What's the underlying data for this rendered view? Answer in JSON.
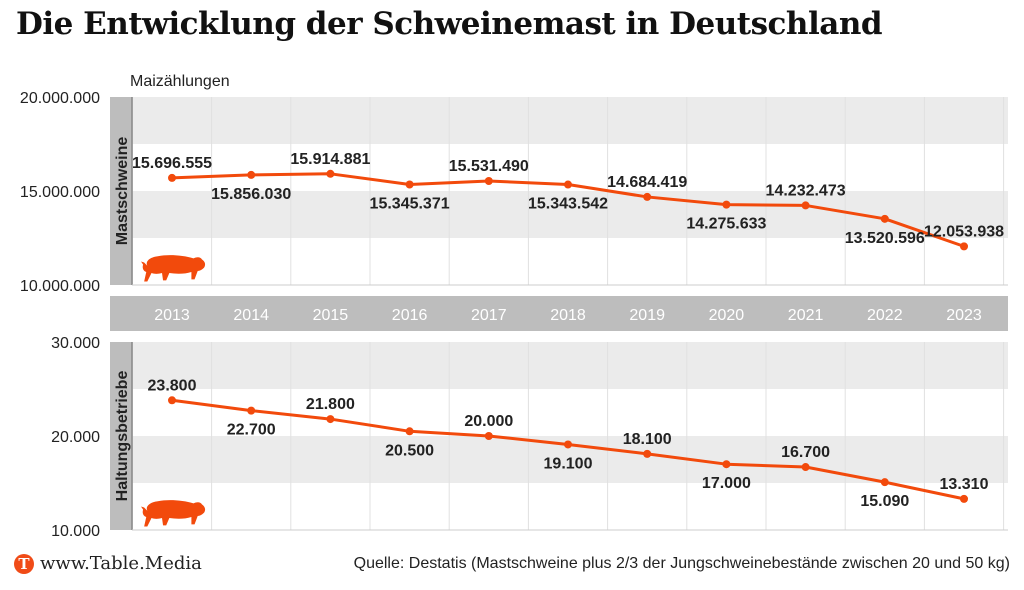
{
  "title": "Die Entwicklung der Schweinemast in Deutschland",
  "unit_label": "Maizählungen",
  "footer": {
    "logo_letter": "T",
    "site": "www.Table.Media",
    "source": "Quelle: Destatis (Mastschweine plus 2/3 der Jungschweinebestände zwischen 20 und 50 kg)"
  },
  "colors": {
    "line": "#f24a0c",
    "band": "#ebebeb",
    "axis_strip": "#bdbdbd",
    "year_text": "#ffffff"
  },
  "chart_data": [
    {
      "type": "line",
      "panel_label": "Mastschweine",
      "icon": "pig-icon",
      "x": [
        "2013",
        "2014",
        "2015",
        "2016",
        "2017",
        "2018",
        "2019",
        "2020",
        "2021",
        "2022",
        "2023"
      ],
      "values": [
        15696555,
        15856030,
        15914881,
        15345371,
        15531490,
        15343542,
        14684419,
        14275633,
        14232473,
        13520596,
        12053938
      ],
      "labels": [
        "15.696.555",
        "15.856.030",
        "15.914.881",
        "15.345.371",
        "15.531.490",
        "15.343.542",
        "14.684.419",
        "14.275.633",
        "14.232.473",
        "13.520.596",
        "12.053.938"
      ],
      "label_pos": [
        "above",
        "below",
        "above",
        "below",
        "above",
        "below",
        "above",
        "below",
        "above",
        "below",
        "above"
      ],
      "ylim": [
        10000000,
        20000000
      ],
      "yticks": [
        10000000,
        15000000,
        20000000
      ],
      "ytick_labels": [
        "10.000.000",
        "15.000.000",
        "20.000.000"
      ]
    },
    {
      "type": "line",
      "panel_label": "Haltungsbetriebe",
      "icon": "pig-icon",
      "x": [
        "2013",
        "2014",
        "2015",
        "2016",
        "2017",
        "2018",
        "2019",
        "2020",
        "2021",
        "2022",
        "2023"
      ],
      "values": [
        23800,
        22700,
        21800,
        20500,
        20000,
        19100,
        18100,
        17000,
        16700,
        15090,
        13310
      ],
      "labels": [
        "23.800",
        "22.700",
        "21.800",
        "20.500",
        "20.000",
        "19.100",
        "18.100",
        "17.000",
        "16.700",
        "15.090",
        "13.310"
      ],
      "label_pos": [
        "above",
        "below",
        "above",
        "below",
        "above",
        "below",
        "above",
        "below",
        "above",
        "below",
        "above"
      ],
      "ylim": [
        10000,
        30000
      ],
      "yticks": [
        10000,
        20000,
        30000
      ],
      "ytick_labels": [
        "10.000",
        "20.000",
        "30.000"
      ]
    }
  ],
  "years": [
    "2013",
    "2014",
    "2015",
    "2016",
    "2017",
    "2018",
    "2019",
    "2020",
    "2021",
    "2022",
    "2023"
  ]
}
